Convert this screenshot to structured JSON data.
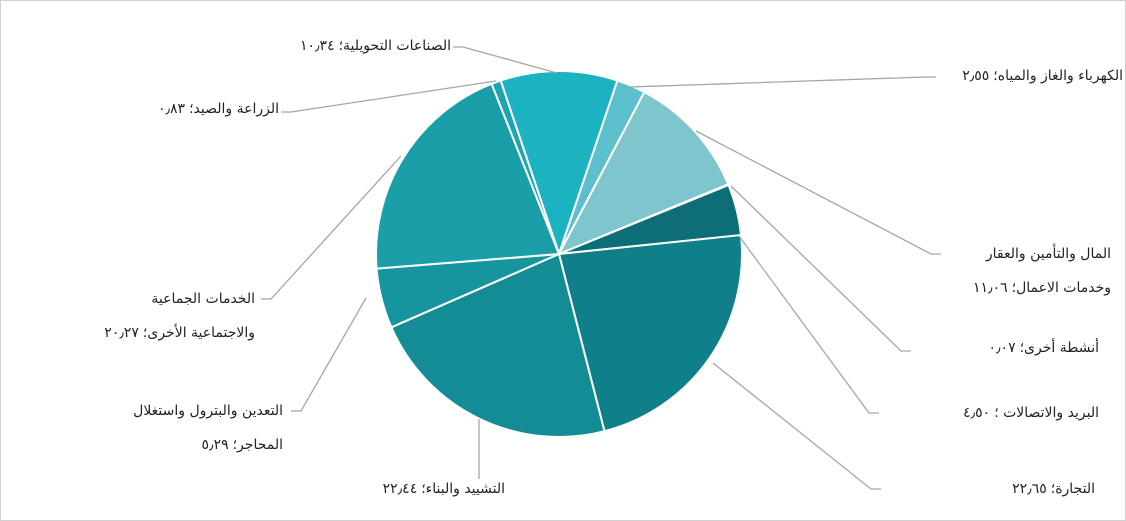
{
  "chart_data": {
    "type": "pie",
    "categories": [
      "الصناعات التحويلية؛",
      "الكهرباء والغاز والمياه؛",
      "المال والتأمين والعقار\nوخدمات الاعمال؛",
      "أنشطة أخرى؛",
      "البريد والاتصالات ؛",
      "التجارة؛",
      "التشييد والبناء؛",
      "التعدين والبترول واستغلال\nالمحاجر؛",
      "الخدمات الجماعية\nوالاجتماعية الأخرى؛",
      "الزراعة والصيد؛"
    ],
    "values": [
      10.34,
      2.55,
      11.06,
      0.07,
      4.5,
      22.65,
      22.44,
      5.29,
      20.27,
      0.83
    ],
    "value_labels": [
      "١٠٫٣٤",
      "٢٫٥٥",
      "١١٫٠٦",
      "٠٫٠٧",
      "٤٫٥٠",
      "٢٢٫٦٥",
      "٢٢٫٤٤",
      "٥٫٢٩",
      "٢٠٫٢٧",
      "٠٫٨٣"
    ],
    "colors": [
      "#1bb3c2",
      "#5bbfcc",
      "#7fc5cd",
      "#0c6670",
      "#0e6e78",
      "#0f808a",
      "#148c96",
      "#17959f",
      "#1a9fa9",
      "#1aa5b0"
    ]
  }
}
